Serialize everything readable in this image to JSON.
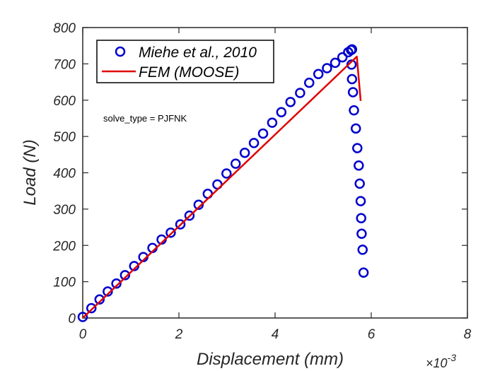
{
  "chart_data": {
    "type": "scatter",
    "xlabel": "Displacement (mm)",
    "ylabel": "Load (N)",
    "x_multiplier": {
      "base": "×10",
      "exponent": "-3"
    },
    "xlim": [
      0,
      8
    ],
    "ylim": [
      0,
      800
    ],
    "xticks": [
      0,
      2,
      4,
      6,
      8
    ],
    "yticks": [
      0,
      100,
      200,
      300,
      400,
      500,
      600,
      700,
      800
    ],
    "grid": false,
    "legend": {
      "position": "top-left",
      "entries": [
        "Miehe et al., 2010",
        "FEM (MOOSE)"
      ]
    },
    "annotation": "solve_type = PJFNK",
    "series": [
      {
        "name": "Miehe et al., 2010",
        "style": "markers",
        "marker": "circle",
        "color": "#0000cc",
        "x": [
          0,
          0.18,
          0.35,
          0.52,
          0.7,
          0.88,
          1.07,
          1.26,
          1.45,
          1.64,
          1.83,
          2.03,
          2.22,
          2.41,
          2.6,
          2.8,
          2.99,
          3.18,
          3.37,
          3.56,
          3.75,
          3.94,
          4.13,
          4.32,
          4.52,
          4.71,
          4.9,
          5.08,
          5.25,
          5.4,
          5.52,
          5.58,
          5.6,
          5.59,
          5.6,
          5.62,
          5.64,
          5.68,
          5.71,
          5.74,
          5.76,
          5.78,
          5.79,
          5.8,
          5.82,
          5.84
        ],
        "y": [
          3,
          27,
          51,
          73,
          95,
          118,
          143,
          168,
          193,
          216,
          235,
          258,
          282,
          312,
          342,
          368,
          398,
          425,
          455,
          482,
          508,
          538,
          567,
          595,
          620,
          648,
          672,
          688,
          703,
          718,
          732,
          738,
          740,
          698,
          658,
          622,
          572,
          522,
          468,
          420,
          370,
          322,
          275,
          232,
          188,
          125
        ]
      },
      {
        "name": "FEM (MOOSE)",
        "style": "line",
        "color": "#e00000",
        "x": [
          0,
          5.7,
          5.78
        ],
        "y": [
          0,
          720,
          598
        ]
      }
    ]
  }
}
